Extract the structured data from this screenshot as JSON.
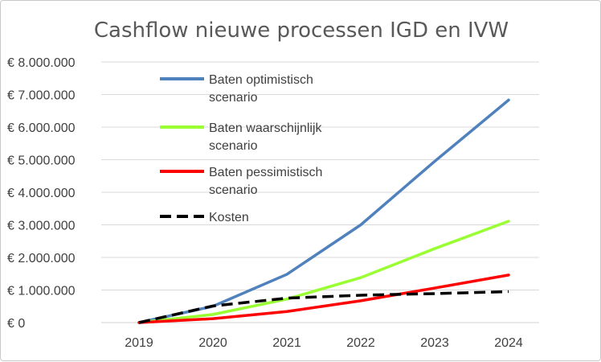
{
  "chart_data": {
    "type": "line",
    "title": "Cashflow nieuwe processen IGD en IVW",
    "xlabel": "",
    "ylabel": "",
    "categories": [
      "2019",
      "2020",
      "2021",
      "2022",
      "2023",
      "2024"
    ],
    "ylim": [
      0,
      8000000
    ],
    "yticks": [
      0,
      1000000,
      2000000,
      3000000,
      4000000,
      5000000,
      6000000,
      7000000,
      8000000
    ],
    "ytick_labels": [
      "€ 0",
      "€ 1.000.000",
      "€ 2.000.000",
      "€ 3.000.000",
      "€ 4.000.000",
      "€ 5.000.000",
      "€ 6.000.000",
      "€ 7.000.000",
      "€ 8.000.000"
    ],
    "grid": true,
    "legend_position": "top-left inside plot",
    "series": [
      {
        "name": "Baten optimistisch scenario",
        "legend_lines": [
          "Baten optimistisch",
          "scenario"
        ],
        "color": "#4f81bd",
        "dash": "solid",
        "values": [
          0,
          500000,
          1480000,
          3000000,
          4950000,
          6830000
        ]
      },
      {
        "name": "Baten waarschijnlijk scenario",
        "legend_lines": [
          "Baten waarschijnlijk",
          "scenario"
        ],
        "color": "#99ff33",
        "dash": "solid",
        "values": [
          0,
          250000,
          720000,
          1380000,
          2270000,
          3110000
        ]
      },
      {
        "name": "Baten pessimistisch scenario",
        "legend_lines": [
          "Baten pessimistisch",
          "scenario"
        ],
        "color": "#ff0000",
        "dash": "solid",
        "values": [
          0,
          120000,
          340000,
          670000,
          1060000,
          1460000
        ]
      },
      {
        "name": "Kosten",
        "legend_lines": [
          "Kosten"
        ],
        "color": "#000000",
        "dash": "dashed",
        "values": [
          0,
          510000,
          750000,
          840000,
          890000,
          950000
        ]
      }
    ]
  }
}
